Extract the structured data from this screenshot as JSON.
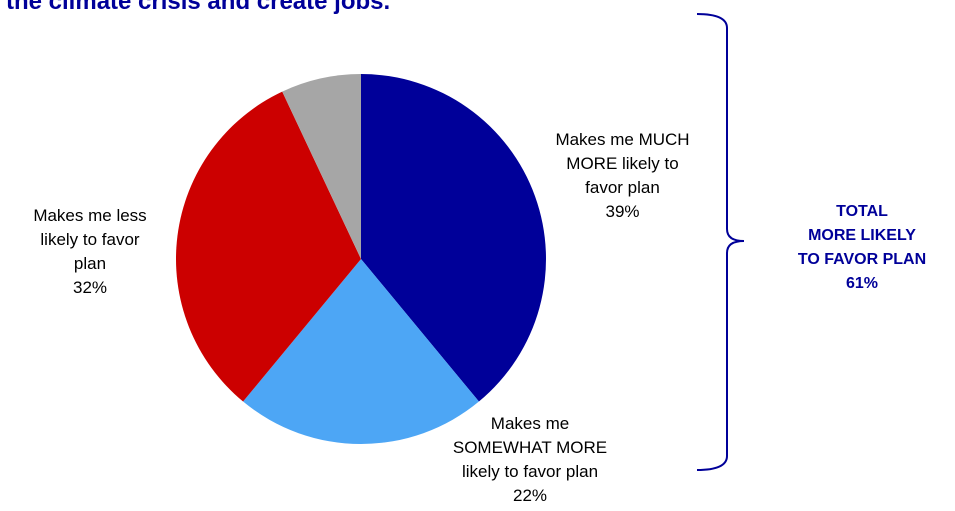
{
  "title": "the climate crisis and create jobs.",
  "chart_data": {
    "type": "pie",
    "start": "12 o'clock, clockwise",
    "slices": [
      {
        "label_lines": [
          "Makes me MUCH",
          "MORE likely to",
          "favor plan"
        ],
        "value": 39,
        "value_label": "39%",
        "color": "#000099"
      },
      {
        "label_lines": [
          "Makes me",
          "SOMEWHAT MORE",
          "likely to favor plan"
        ],
        "value": 22,
        "value_label": "22%",
        "color": "#4DA6F5"
      },
      {
        "label_lines": [
          "Makes me less",
          "likely to favor",
          "plan"
        ],
        "value": 32,
        "value_label": "32%",
        "color": "#CC0000"
      },
      {
        "label_lines": [],
        "value": 7,
        "value_label": "",
        "color": "#A6A6A6"
      }
    ],
    "annotation": {
      "lines": [
        "TOTAL",
        "MORE LIKELY",
        "TO FAVOR PLAN",
        "61%"
      ],
      "color": "#000099"
    }
  }
}
